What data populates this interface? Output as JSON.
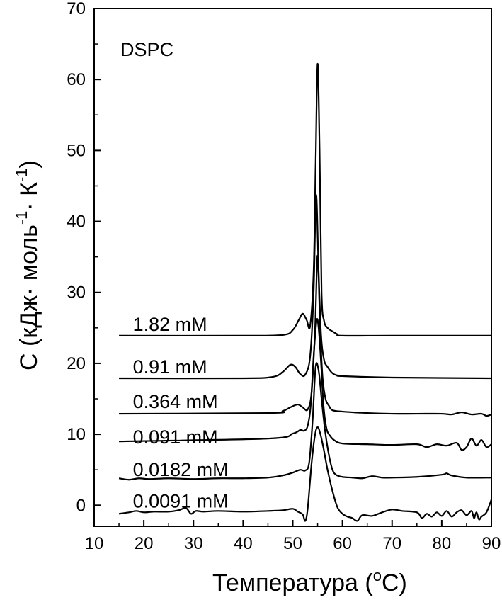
{
  "chart_data": {
    "type": "line",
    "title": "",
    "annotation": "DSPC",
    "xlabel": {
      "main": "Температура (",
      "sup": "o",
      "tail": "C)"
    },
    "ylabel": {
      "p1": "C (кДж· моль",
      "sup1": "-1",
      "p2": "· К",
      "sup2": "-1",
      "p3": ")"
    },
    "xlim": [
      10,
      90
    ],
    "ylim": [
      -3,
      70
    ],
    "xticks": [
      10,
      20,
      30,
      40,
      50,
      60,
      70,
      80,
      90
    ],
    "yticks": [
      0,
      10,
      20,
      30,
      40,
      50,
      60,
      70
    ],
    "grid": false,
    "series": [
      {
        "name": "1.82 mM",
        "label_pos": [
          15.5,
          25.5
        ],
        "x": [
          15,
          40,
          48,
          50,
          51.2,
          52,
          52.8,
          53.5,
          54.2,
          54.6,
          55,
          55.4,
          55.8,
          56.3,
          57,
          58,
          59,
          60,
          70,
          90
        ],
        "y": [
          23.9,
          23.9,
          24.0,
          24.7,
          26.1,
          27.0,
          26.1,
          25.3,
          33.0,
          48.0,
          62.2,
          50.0,
          30.0,
          26.0,
          25.0,
          24.5,
          24.1,
          23.9,
          23.9,
          23.9
        ]
      },
      {
        "name": "0.91 mM",
        "label_pos": [
          15.5,
          19.5
        ],
        "x": [
          15,
          40,
          46,
          48,
          49.5,
          50.5,
          51.5,
          52.5,
          53.5,
          54.2,
          54.7,
          55.2,
          55.7,
          56.3,
          57,
          58,
          59,
          60,
          70,
          90
        ],
        "y": [
          17.9,
          17.9,
          18.1,
          18.8,
          19.8,
          19.5,
          18.5,
          18.4,
          21.0,
          30.0,
          43.7,
          33.0,
          24.0,
          20.5,
          19.5,
          18.6,
          18.3,
          18.2,
          18.0,
          17.9
        ]
      },
      {
        "name": "0.364 mM",
        "label_pos": [
          15.5,
          14.6
        ],
        "x": [
          15,
          45,
          48,
          49.5,
          51,
          52,
          53,
          53.8,
          54.5,
          55,
          55.5,
          56,
          56.6,
          57.3,
          58,
          60,
          65,
          70,
          75,
          80,
          82,
          84,
          86,
          88,
          89,
          90
        ],
        "y": [
          12.9,
          13.0,
          13.3,
          13.8,
          14.2,
          13.8,
          13.5,
          16.0,
          25.0,
          35.2,
          25.0,
          18.0,
          15.0,
          14.0,
          13.4,
          13.2,
          13.0,
          12.9,
          12.9,
          12.9,
          12.8,
          13.1,
          12.8,
          12.9,
          12.6,
          12.8
        ]
      },
      {
        "name": "0.091 mM",
        "label_pos": [
          15.5,
          9.6
        ],
        "x": [
          15,
          45,
          50,
          51.5,
          52.3,
          53,
          53.6,
          54.2,
          54.8,
          55.2,
          55.7,
          56.2,
          56.8,
          57.5,
          58.3,
          60,
          65,
          70,
          75,
          77,
          79,
          81,
          83,
          84,
          85,
          86,
          87,
          88,
          89,
          90
        ],
        "y": [
          9.0,
          9.4,
          10.1,
          10.6,
          10.5,
          11.2,
          14.0,
          21.0,
          26.0,
          25.0,
          20.0,
          14.0,
          10.8,
          9.8,
          9.2,
          8.7,
          8.6,
          8.5,
          8.6,
          8.2,
          8.6,
          8.4,
          8.8,
          7.8,
          8.2,
          9.4,
          8.4,
          9.2,
          8.2,
          8.6
        ]
      },
      {
        "name": "0.0182 mM",
        "label_pos": [
          15.5,
          5.0
        ],
        "x": [
          15,
          17,
          19,
          21,
          25,
          30,
          35,
          40,
          45,
          48,
          50,
          51.5,
          52.5,
          53.3,
          54,
          54.6,
          55.2,
          55.8,
          56.5,
          57.3,
          58,
          58.7,
          60,
          62,
          64,
          66,
          68,
          70,
          75,
          80,
          81,
          82,
          85,
          90
        ],
        "y": [
          3.8,
          3.6,
          3.8,
          3.7,
          3.8,
          3.7,
          3.8,
          3.8,
          3.9,
          4.2,
          4.6,
          5.0,
          4.9,
          6.0,
          12.0,
          19.5,
          19.0,
          15.0,
          10.5,
          7.0,
          5.0,
          4.3,
          4.0,
          3.9,
          3.8,
          4.1,
          3.9,
          3.9,
          4.0,
          4.3,
          4.5,
          4.2,
          3.9,
          3.9
        ]
      },
      {
        "name": "0.0091 mM",
        "label_pos": [
          15.5,
          0.6
        ],
        "x": [
          15,
          17,
          18.5,
          20,
          22,
          25,
          27,
          28.5,
          29.5,
          30.5,
          32,
          35,
          40,
          45,
          48,
          50,
          51,
          52,
          52.5,
          53,
          53.8,
          54.5,
          55,
          55.5,
          56.2,
          57,
          58,
          59,
          60,
          61,
          62,
          63,
          64,
          66,
          68,
          70,
          72,
          75,
          76,
          77,
          78,
          79,
          80,
          81,
          82,
          83,
          84,
          85,
          86,
          86.5,
          87,
          87.5,
          88,
          89,
          90
        ],
        "y": [
          -1.2,
          -1.0,
          -0.8,
          -1.0,
          -0.9,
          -0.9,
          -0.7,
          -0.4,
          -1.2,
          -0.8,
          -0.9,
          -0.8,
          -0.9,
          -0.8,
          -0.7,
          -0.5,
          -0.9,
          -1.3,
          -2.2,
          -0.5,
          6.0,
          10.0,
          11.0,
          10.2,
          8.0,
          5.0,
          2.0,
          -0.3,
          -1.2,
          -1.6,
          -1.8,
          -2.2,
          -1.4,
          -1.5,
          -1.0,
          -0.6,
          -0.8,
          -1.0,
          -1.8,
          -1.2,
          -1.6,
          -1.0,
          -1.5,
          -0.8,
          -1.6,
          -1.0,
          -0.7,
          -1.4,
          -0.8,
          -1.8,
          -1.0,
          -2.0,
          -1.6,
          -1.0,
          0.8
        ]
      }
    ]
  }
}
